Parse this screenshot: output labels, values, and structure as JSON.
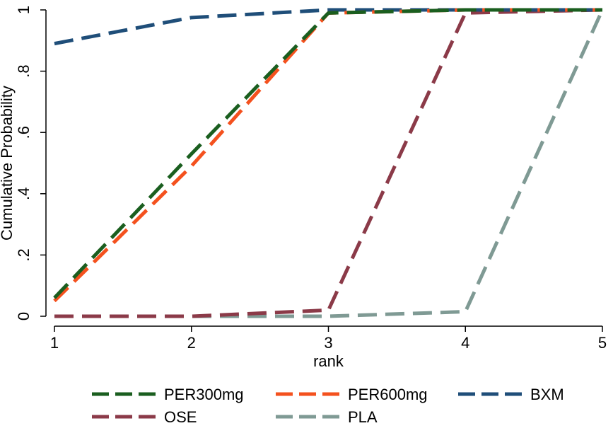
{
  "chart_data": {
    "type": "line",
    "xlabel": "rank",
    "ylabel": "Cumulative Probability",
    "x": [
      1,
      2,
      3,
      4,
      5
    ],
    "xlim": [
      1,
      5
    ],
    "ylim": [
      0,
      1
    ],
    "x_ticks": [
      "1",
      "2",
      "3",
      "4",
      "5"
    ],
    "y_ticks": [
      "0",
      ".2",
      ".4",
      ".6",
      ".8",
      "1"
    ],
    "y_tick_values": [
      0,
      0.2,
      0.4,
      0.6,
      0.8,
      1
    ],
    "grid": false,
    "legend_position": "bottom",
    "line_style": "dashed",
    "series": [
      {
        "name": "PER300mg",
        "color": "#1a5e1f",
        "values": [
          0.06,
          0.53,
          0.99,
          1.0,
          1.0
        ]
      },
      {
        "name": "PER600mg",
        "color": "#f4511e",
        "values": [
          0.05,
          0.49,
          0.99,
          1.0,
          1.0
        ]
      },
      {
        "name": "BXM",
        "color": "#1f4e79",
        "values": [
          0.89,
          0.975,
          1.0,
          1.0,
          1.0
        ]
      },
      {
        "name": "OSE",
        "color": "#8b3a48",
        "values": [
          0.0,
          0.0,
          0.02,
          0.99,
          1.0
        ]
      },
      {
        "name": "PLA",
        "color": "#7f9a94",
        "values": [
          0.0,
          0.0,
          0.0,
          0.015,
          1.0
        ]
      }
    ]
  }
}
